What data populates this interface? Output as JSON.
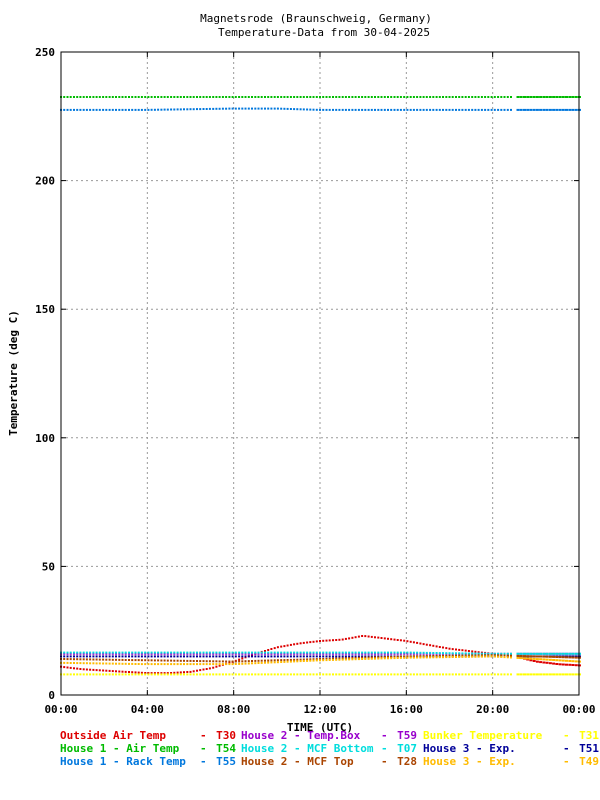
{
  "chart_data": {
    "type": "scatter",
    "title": "Magnetsrode (Braunschweig, Germany)",
    "subtitle": "Temperature-Data from 30-04-2025",
    "xlabel": "TIME (UTC)",
    "ylabel": "Temperature (deg C)",
    "xlim": [
      0,
      24
    ],
    "ylim": [
      0,
      250
    ],
    "x_ticks": [
      "00:00",
      "04:00",
      "08:00",
      "12:00",
      "16:00",
      "20:00",
      "00:00"
    ],
    "y_ticks": [
      "0",
      "50",
      "100",
      "150",
      "200",
      "250"
    ],
    "grid": true,
    "legend_position": "bottom",
    "series": [
      {
        "name": "Outside Air Temp",
        "code": "T30",
        "color": "#dd0000",
        "x": [
          0,
          1,
          2,
          3,
          4,
          5,
          6,
          7,
          8,
          9,
          10,
          11,
          12,
          13,
          14,
          15,
          16,
          17,
          18,
          19,
          20,
          21,
          22,
          23,
          24
        ],
        "y": [
          11,
          10,
          9.5,
          9,
          8.5,
          8.5,
          9,
          10.5,
          13,
          16,
          18.5,
          20,
          21,
          21.5,
          23,
          22,
          21,
          19.5,
          18,
          17,
          16,
          15,
          13,
          12,
          11.5
        ]
      },
      {
        "name": "House 2 - Temp.Box",
        "code": "T59",
        "color": "#9900cc",
        "x": [
          0,
          24
        ],
        "y": [
          16,
          16
        ]
      },
      {
        "name": "Bunker Temperature",
        "code": "T31",
        "color": "#ffff00",
        "x": [
          0,
          4,
          8,
          12,
          16,
          20,
          24
        ],
        "y": [
          8,
          8,
          8,
          8,
          8,
          8,
          8
        ]
      },
      {
        "name": "House 1 - Air  Temp",
        "code": "T54",
        "color": "#00bb00",
        "x": [
          0,
          4,
          8,
          12,
          16,
          20,
          24
        ],
        "y": [
          232.5,
          232.5,
          232.5,
          232.5,
          232.5,
          232.5,
          232.5
        ]
      },
      {
        "name": "House 2 - MCF Bottom",
        "code": "T07",
        "color": "#00dddd",
        "x": [
          0,
          4,
          8,
          12,
          16,
          20,
          24
        ],
        "y": [
          16.5,
          16.5,
          16.5,
          16.5,
          16.5,
          16,
          16
        ]
      },
      {
        "name": "House 3 - Exp.",
        "code": "T51",
        "color": "#000099",
        "x": [
          0,
          4,
          8,
          12,
          16,
          20,
          24
        ],
        "y": [
          15,
          15,
          15,
          15,
          15,
          15,
          15
        ]
      },
      {
        "name": "House 1 - Rack Temp",
        "code": "T55",
        "color": "#0077dd",
        "x": [
          0,
          4,
          8,
          10,
          12,
          16,
          20,
          24
        ],
        "y": [
          227.5,
          227.5,
          228,
          228,
          227.5,
          227.5,
          227.5,
          227.5
        ]
      },
      {
        "name": "House 2 - MCF Top",
        "code": "T28",
        "color": "#aa4400",
        "x": [
          0,
          4,
          8,
          12,
          16,
          20,
          24
        ],
        "y": [
          14,
          13.5,
          13,
          14,
          15,
          15.5,
          14.5
        ]
      },
      {
        "name": "House 3 - Exp.",
        "code": "T49",
        "color": "#ffbb00",
        "x": [
          0,
          4,
          8,
          12,
          16,
          20,
          24
        ],
        "y": [
          12.5,
          12,
          12,
          13.5,
          14.5,
          15,
          13
        ]
      }
    ]
  }
}
